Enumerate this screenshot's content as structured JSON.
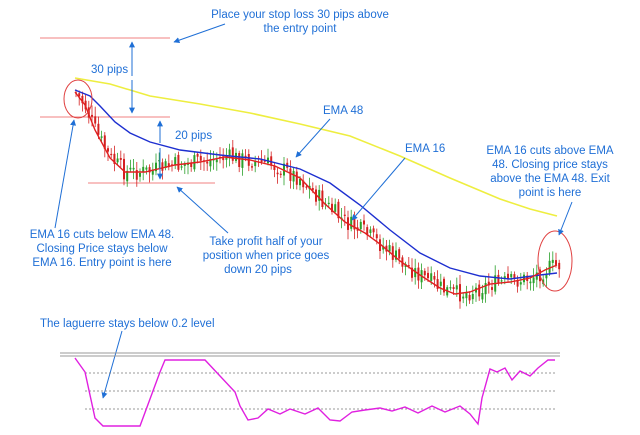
{
  "colors": {
    "annotation": "#1f6fd6",
    "candle_up": "#2aa02a",
    "candle_down": "#d42020",
    "ema16": "#e02020",
    "ema48": "#1d2fd0",
    "ema_slow": "#eeee40",
    "laguerre": "#e020e0",
    "level_line": "#f08080",
    "circle": "#e04040",
    "separator": "#999999",
    "arrow": "#1f6fd6"
  },
  "annotations": {
    "stop_loss": [
      "Place your stop loss 30 pips above",
      "the entry point"
    ],
    "pips30": "30 pips",
    "pips20": "20 pips",
    "ema48": "EMA 48",
    "ema16": "EMA 16",
    "entry": [
      "EMA 16 cuts below EMA 48.",
      "Closing Price stays below",
      "EMA 16. Entry point is here"
    ],
    "take_profit": [
      "Take profit half of your",
      "position when price goes",
      "down  20 pips"
    ],
    "exit": [
      "EMA 16 cuts above EMA",
      "48. Closing price stays",
      "above the EMA 48. Exit",
      "point is here"
    ],
    "laguerre": "The laguerre stays below 0.2 level"
  },
  "chart_data": {
    "type": "candlestick",
    "series": [
      {
        "name": "EMA 16",
        "kind": "line"
      },
      {
        "name": "EMA 48",
        "kind": "line"
      },
      {
        "kind": "line"
      }
    ],
    "indicator": {
      "name": "Laguerre",
      "levels": [
        0.2,
        0.8
      ]
    },
    "trade": {
      "stop_loss_pips": 30,
      "take_profit_pips": 20,
      "direction": "short"
    }
  }
}
